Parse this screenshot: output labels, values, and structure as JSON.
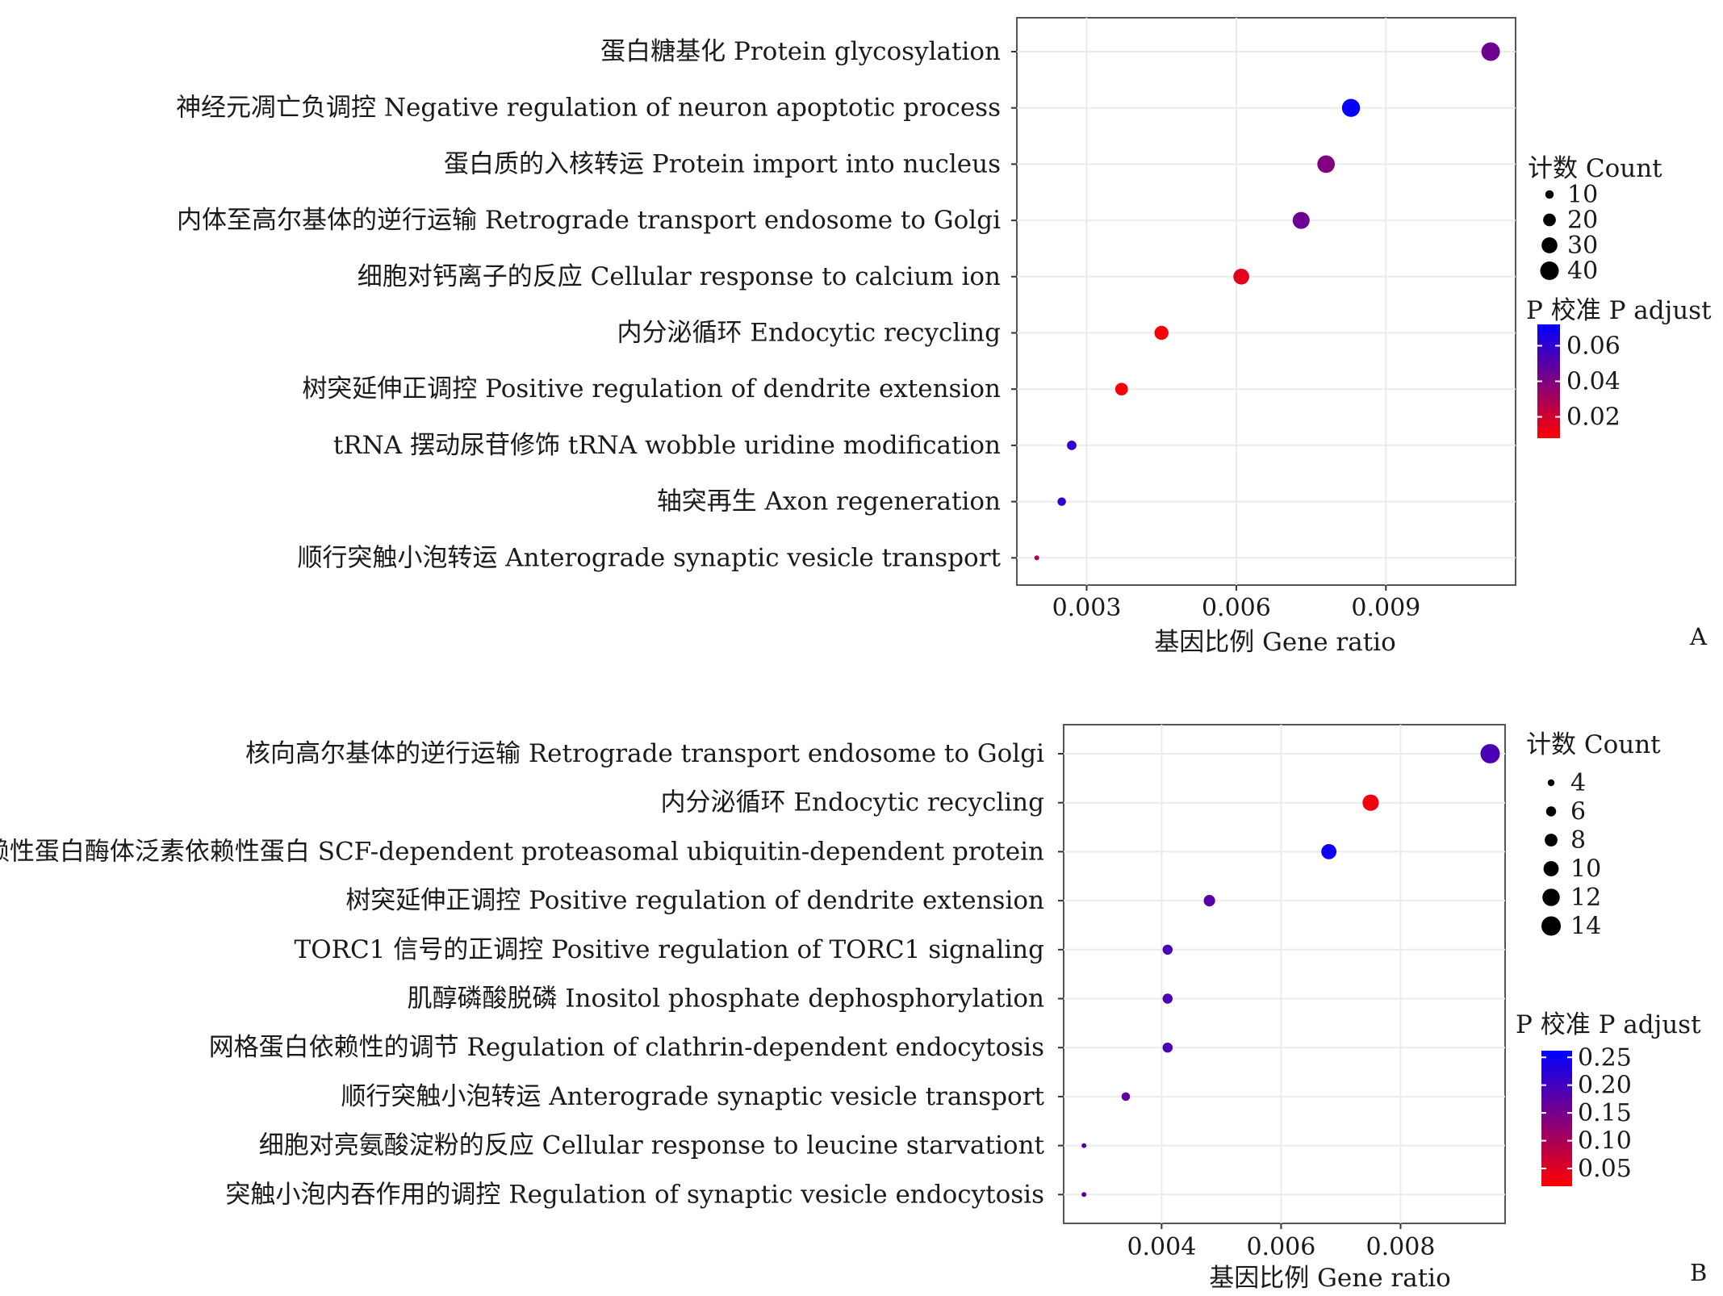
{
  "chart_data": [
    {
      "type": "scatter",
      "panel_label": "A",
      "xlabel": "基因比例  Gene  ratio",
      "x_ticks": [
        "0.003",
        "0.006",
        "0.009"
      ],
      "xlim": [
        0.0016,
        0.0116
      ],
      "categories": [
        "蛋白糖基化 Protein glycosylation",
        "神经元凋亡负调控 Negative regulation of neuron apoptotic process",
        "蛋白质的入核转运 Protein import into nucleus",
        "内体至高尔基体的逆行运输 Retrograde transport endosome to Golgi",
        "细胞对钙离子的反应 Cellular response to calcium ion",
        "内分泌循环 Endocytic recycling",
        "树突延伸正调控 Positive regulation of dendrite extension",
        "tRNA 摆动尿苷修饰 tRNA wobble uridine modification",
        "轴突再生 Axon regeneration",
        "顺行突触小泡转运 Anterograde synaptic vesicle transport"
      ],
      "series": [
        {
          "x": [
            0.0111,
            0.0083,
            0.0078,
            0.0073,
            0.0061,
            0.0045,
            0.0037,
            0.0027,
            0.0025,
            0.002
          ],
          "count": [
            40,
            38,
            36,
            34,
            30,
            24,
            20,
            12,
            10,
            4
          ],
          "p_adjust": [
            0.045,
            0.07,
            0.04,
            0.045,
            0.015,
            0.01,
            0.01,
            0.06,
            0.06,
            0.03
          ]
        }
      ],
      "size_legend": {
        "title": "计数  Count",
        "values": [
          10,
          20,
          30,
          40
        ]
      },
      "color_legend": {
        "title": "P 校准  P  adjust",
        "ticks": [
          0.06,
          0.04,
          0.02
        ],
        "range": [
          0.008,
          0.072
        ],
        "low_color": "#ff0000",
        "high_color": "#0000ff"
      },
      "grid": true
    },
    {
      "type": "scatter",
      "panel_label": "B",
      "xlabel": "基因比例  Gene  ratio",
      "x_ticks": [
        "0.004",
        "0.006",
        "0.008"
      ],
      "xlim": [
        0.00236,
        0.00975
      ],
      "categories": [
        "核向高尔基体的逆行运输 Retrograde transport endosome to Golgi",
        "内分泌循环 Endocytic recycling",
        "SCF 依赖性蛋白酶体泛素依赖性蛋白 SCF-dependent proteasomal ubiquitin-dependent protein",
        "树突延伸正调控 Positive regulation of dendrite extension",
        "TORC1 信号的正调控 Positive regulation of TORC1 signaling",
        "肌醇磷酸脱磷 Inositol phosphate dephosphorylation",
        "网格蛋白依赖性的调节 Regulation of clathrin-dependent endocytosis",
        "顺行突触小泡转运 Anterograde synaptic vesicle transport",
        "细胞对亮氨酸淀粉的反应 Cellular response to leucine starvationt",
        "突触小泡内吞作用的调控 Regulation of synaptic vesicle endocytosis"
      ],
      "series": [
        {
          "x": [
            0.0095,
            0.0075,
            0.0068,
            0.0048,
            0.0041,
            0.0041,
            0.0041,
            0.0034,
            0.0027,
            0.0027
          ],
          "count": [
            14,
            11,
            10,
            7,
            6,
            6,
            6,
            5,
            3,
            3
          ],
          "p_adjust": [
            0.19,
            0.03,
            0.25,
            0.18,
            0.19,
            0.19,
            0.19,
            0.17,
            0.18,
            0.18
          ]
        }
      ],
      "size_legend": {
        "title": "计数  Count",
        "values": [
          4,
          6,
          8,
          10,
          12,
          14
        ]
      },
      "color_legend": {
        "title": "P 校准  P  adjust",
        "ticks": [
          0.25,
          0.2,
          0.15,
          0.1,
          0.05
        ],
        "range": [
          0.018,
          0.262
        ],
        "low_color": "#ff0000",
        "high_color": "#0000ff"
      },
      "grid": true
    }
  ]
}
